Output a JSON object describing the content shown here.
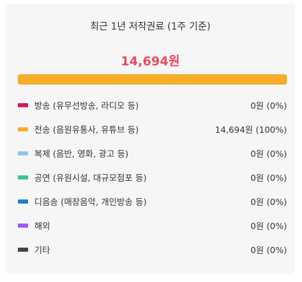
{
  "title": "최근 1년 저작권료 (1주 기준)",
  "total": "14,694원",
  "bar": {
    "fill_fraction": 1.0,
    "fill_color": "#f5ad2a"
  },
  "rows": [
    {
      "label": "방송 (유무선방송, 라디오 등)",
      "value": "0원 (0%)",
      "color": "#d6185c"
    },
    {
      "label": "전송 (음원유통사, 유튜브 등)",
      "value": "14,694원 (100%)",
      "color": "#f5ad2a"
    },
    {
      "label": "복제 (음반, 영화, 광고 등)",
      "value": "0원 (0%)",
      "color": "#8ec6ea"
    },
    {
      "label": "공연 (유원시설, 대규모점포 등)",
      "value": "0원 (0%)",
      "color": "#3cc49a"
    },
    {
      "label": "디음송 (매장음악, 개인방송 등)",
      "value": "0원 (0%)",
      "color": "#1a7fcf"
    },
    {
      "label": "해외",
      "value": "0원 (0%)",
      "color": "#9b59f5"
    },
    {
      "label": "기타",
      "value": "0원 (0%)",
      "color": "#444444"
    }
  ]
}
